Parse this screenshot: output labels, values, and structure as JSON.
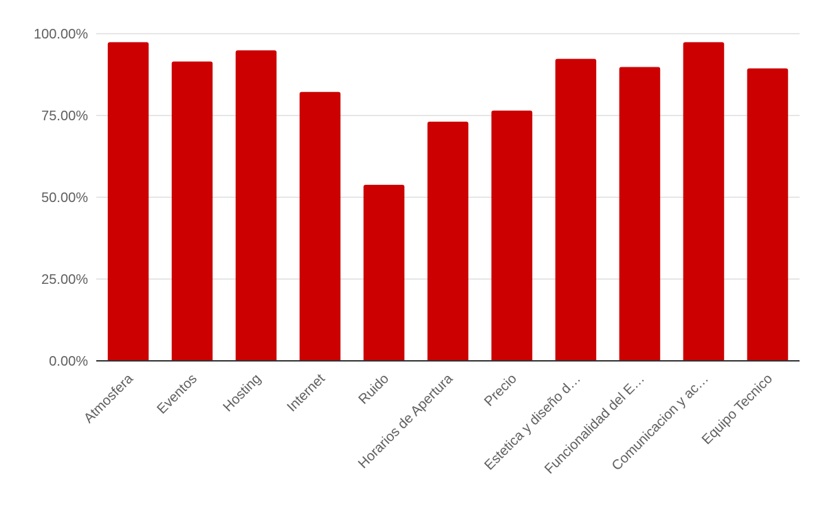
{
  "chart_data": {
    "type": "bar",
    "categories": [
      "Atmosfera",
      "Eventos",
      "Hosting",
      "Internet",
      "Ruido",
      "Horarios de Apertura",
      "Precio",
      "Estetica y diseño d…",
      "Funcionalidad del E…",
      "Comunicacion y ac…",
      "Equipo Tecnico"
    ],
    "values": [
      97.4,
      91.5,
      94.9,
      82.2,
      53.8,
      73.1,
      76.5,
      92.3,
      89.8,
      97.4,
      89.4
    ],
    "ylim": [
      0,
      100
    ],
    "yticks": [
      0,
      25,
      50,
      75,
      100
    ],
    "ytick_labels": [
      "0.00%",
      "25.00%",
      "50.00%",
      "75.00%",
      "100.00%"
    ],
    "bar_color": "#cc0000",
    "grid": true,
    "title": "",
    "xlabel": "",
    "ylabel": ""
  }
}
